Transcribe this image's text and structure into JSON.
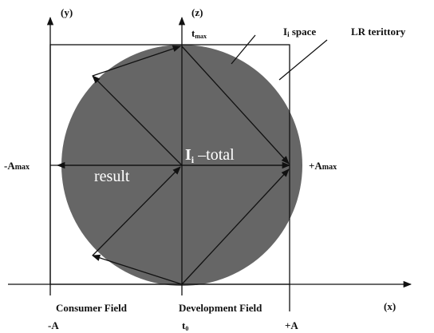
{
  "axes": {
    "y": "(y)",
    "z": "(z)",
    "x": "(x)"
  },
  "labels": {
    "tmax": {
      "main": "t",
      "sub": "max"
    },
    "ispace": {
      "main": "I",
      "sub": "i",
      "rest": " space"
    },
    "lr": "LR terittory",
    "amax_neg": {
      "main": "-A",
      "sub": "max"
    },
    "amax_pos": {
      "main": "+A",
      "sub": "max"
    },
    "itotal": {
      "main": "I",
      "sub": "i",
      "rest": " –total"
    },
    "result": "result",
    "consumer": "Consumer Field",
    "development": "Development Field",
    "neg_a": "-A",
    "t0": {
      "main": "t",
      "sub": "0"
    },
    "pos_a": "+A"
  }
}
